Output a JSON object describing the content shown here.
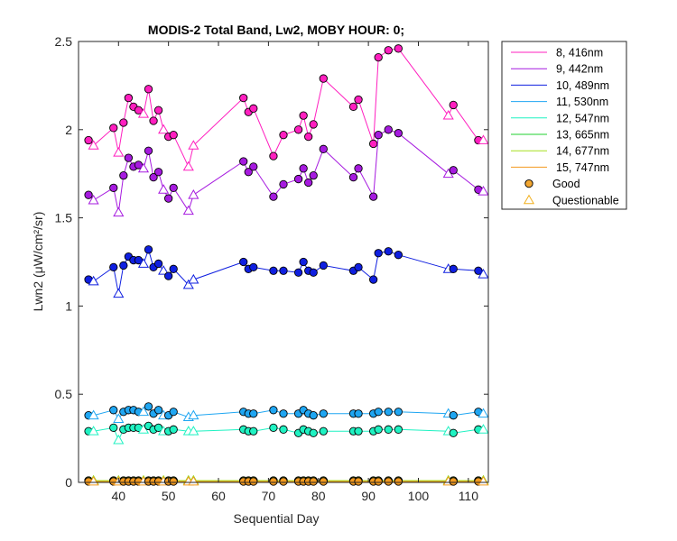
{
  "chart_data": {
    "type": "line",
    "title": "MODIS-2 Total Band, Lw2, MOBY HOUR: 0;",
    "xlabel": "Sequential Day",
    "ylabel": "Lwn2 (μW/cm²/sr)",
    "xlim": [
      32,
      114
    ],
    "ylim": [
      0,
      2.5
    ],
    "xticks": [
      "40",
      "50",
      "60",
      "70",
      "80",
      "90",
      "100",
      "110"
    ],
    "yticks": [
      "0",
      "0.5",
      "1",
      "1.5",
      "2",
      "2.5"
    ],
    "x": [
      34,
      35,
      39,
      40,
      41,
      42,
      43,
      44,
      45,
      46,
      47,
      48,
      49,
      50,
      51,
      54,
      55,
      65,
      66,
      67,
      71,
      73,
      76,
      77,
      78,
      79,
      81,
      87,
      88,
      91,
      92,
      94,
      96,
      106,
      107,
      112,
      113
    ],
    "quality": [
      "G",
      "Q",
      "G",
      "Q",
      "G",
      "G",
      "G",
      "G",
      "Q",
      "G",
      "G",
      "G",
      "Q",
      "G",
      "G",
      "Q",
      "Q",
      "G",
      "G",
      "G",
      "G",
      "G",
      "G",
      "G",
      "G",
      "G",
      "G",
      "G",
      "G",
      "G",
      "G",
      "G",
      "G",
      "Q",
      "G",
      "G",
      "Q"
    ],
    "series": [
      {
        "name": "8, 416nm",
        "color": "#ff1fbf",
        "values": [
          1.94,
          1.91,
          2.01,
          1.87,
          2.04,
          2.18,
          2.13,
          2.11,
          2.09,
          2.23,
          2.05,
          2.11,
          2.0,
          1.96,
          1.97,
          1.79,
          1.91,
          2.18,
          2.1,
          2.12,
          1.85,
          1.97,
          2.0,
          2.08,
          1.96,
          2.03,
          2.29,
          2.13,
          2.17,
          1.92,
          2.41,
          2.45,
          2.46,
          2.08,
          2.14,
          1.94,
          1.94
        ]
      },
      {
        "name": "9, 442nm",
        "color": "#a61adf",
        "values": [
          1.63,
          1.6,
          1.67,
          1.53,
          1.74,
          1.84,
          1.79,
          1.8,
          1.78,
          1.88,
          1.73,
          1.76,
          1.66,
          1.61,
          1.67,
          1.54,
          1.63,
          1.82,
          1.76,
          1.79,
          1.62,
          1.69,
          1.72,
          1.78,
          1.7,
          1.74,
          1.89,
          1.73,
          1.78,
          1.62,
          1.97,
          2.0,
          1.98,
          1.75,
          1.77,
          1.66,
          1.65
        ]
      },
      {
        "name": "10, 489nm",
        "color": "#0f1fe0",
        "values": [
          1.15,
          1.14,
          1.22,
          1.07,
          1.23,
          1.28,
          1.26,
          1.26,
          1.24,
          1.32,
          1.22,
          1.24,
          1.2,
          1.17,
          1.21,
          1.12,
          1.15,
          1.25,
          1.21,
          1.22,
          1.2,
          1.2,
          1.19,
          1.25,
          1.2,
          1.19,
          1.23,
          1.2,
          1.22,
          1.15,
          1.3,
          1.31,
          1.29,
          1.21,
          1.21,
          1.2,
          1.18
        ]
      },
      {
        "name": "11, 530nm",
        "color": "#1fa6f2",
        "values": [
          0.38,
          0.38,
          0.41,
          0.36,
          0.4,
          0.41,
          0.41,
          0.4,
          0.4,
          0.43,
          0.39,
          0.41,
          0.38,
          0.38,
          0.4,
          0.37,
          0.38,
          0.4,
          0.39,
          0.39,
          0.41,
          0.39,
          0.39,
          0.41,
          0.39,
          0.38,
          0.39,
          0.39,
          0.39,
          0.39,
          0.4,
          0.4,
          0.4,
          0.39,
          0.38,
          0.4,
          0.39
        ]
      },
      {
        "name": "12, 547nm",
        "color": "#1ff2c2",
        "values": [
          0.29,
          0.29,
          0.31,
          0.24,
          0.3,
          0.31,
          0.31,
          0.31,
          0.3,
          0.32,
          0.3,
          0.31,
          0.29,
          0.29,
          0.3,
          0.29,
          0.29,
          0.3,
          0.29,
          0.29,
          0.31,
          0.3,
          0.28,
          0.3,
          0.29,
          0.28,
          0.29,
          0.29,
          0.29,
          0.29,
          0.3,
          0.3,
          0.3,
          0.29,
          0.28,
          0.3,
          0.3
        ]
      },
      {
        "name": "13, 665nm",
        "color": "#1fd12f",
        "values": [
          0.01,
          0.01,
          0.01,
          0.01,
          0.01,
          0.01,
          0.01,
          0.01,
          0.01,
          0.01,
          0.01,
          0.01,
          0.01,
          0.01,
          0.01,
          0.01,
          0.01,
          0.01,
          0.01,
          0.01,
          0.01,
          0.01,
          0.01,
          0.01,
          0.01,
          0.01,
          0.01,
          0.01,
          0.01,
          0.01,
          0.01,
          0.01,
          0.01,
          0.01,
          0.01,
          0.01,
          0.01
        ]
      },
      {
        "name": "14, 677nm",
        "color": "#a6e01f",
        "values": [
          0.01,
          0.01,
          0.01,
          0.01,
          0.01,
          0.01,
          0.01,
          0.01,
          0.01,
          0.01,
          0.01,
          0.01,
          0.01,
          0.01,
          0.01,
          0.01,
          0.01,
          0.01,
          0.01,
          0.01,
          0.01,
          0.01,
          0.01,
          0.01,
          0.01,
          0.01,
          0.01,
          0.01,
          0.01,
          0.01,
          0.01,
          0.01,
          0.01,
          0.01,
          0.01,
          0.01,
          0.01
        ]
      },
      {
        "name": "15, 747nm",
        "color": "#f29a1f",
        "values": [
          0.005,
          0.005,
          0.005,
          0.005,
          0.005,
          0.005,
          0.005,
          0.005,
          0.005,
          0.005,
          0.005,
          0.005,
          0.005,
          0.005,
          0.005,
          0.005,
          0.005,
          0.005,
          0.005,
          0.005,
          0.005,
          0.005,
          0.005,
          0.005,
          0.005,
          0.005,
          0.005,
          0.005,
          0.005,
          0.005,
          0.005,
          0.005,
          0.005,
          0.005,
          0.005,
          0.005,
          0.005
        ]
      }
    ],
    "markers": [
      {
        "name": "Good",
        "shape": "circle",
        "face": "#f2a630"
      },
      {
        "name": "Questionable",
        "shape": "triangle",
        "face": "#ffffff",
        "edge": "#f2b01f"
      }
    ],
    "legend_position": "outside-right",
    "grid": false
  }
}
